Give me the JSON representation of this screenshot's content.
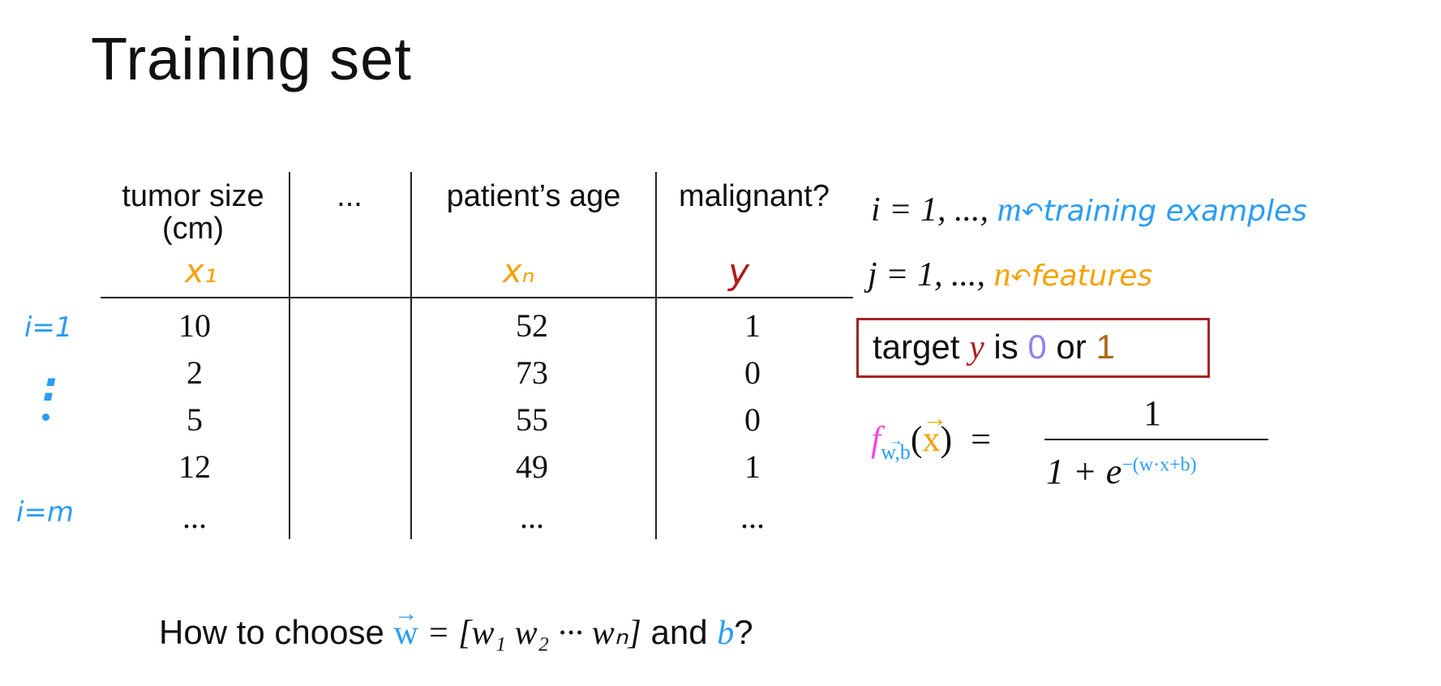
{
  "title": "Training set",
  "table": {
    "headers": [
      {
        "label": "tumor size",
        "sub": "(cm)",
        "var": "x₁"
      },
      {
        "label": "...",
        "sub": "",
        "var": ""
      },
      {
        "label": "patient’s age",
        "sub": "",
        "var": "xₙ"
      },
      {
        "label": "malignant?",
        "sub": "",
        "var": "y"
      }
    ],
    "rows": [
      [
        "10",
        "",
        "52",
        "1"
      ],
      [
        "2",
        "",
        "73",
        "0"
      ],
      [
        "5",
        "",
        "55",
        "0"
      ],
      [
        "12",
        "",
        "49",
        "1"
      ],
      [
        "...",
        "",
        "...",
        "..."
      ]
    ],
    "row_labels": {
      "first": "i=1",
      "dots": ":",
      "last": "i=m"
    }
  },
  "notes": {
    "i_range": "i = 1, ..., ",
    "i_end": "m",
    "i_note": "training examples",
    "j_range": "j = 1, ..., ",
    "j_end": "n",
    "j_note": "features"
  },
  "target": {
    "prefix": "target ",
    "y": "y",
    "is": " is ",
    "zero": "0",
    "or": " or ",
    "one": "1"
  },
  "formula": {
    "f": "f",
    "sub": "w,b",
    "arg": "x",
    "equals": "=",
    "numerator": "1",
    "denominator_prefix": "1 + e",
    "exponent": "−(w·x+b)"
  },
  "question": {
    "prefix": "How to choose ",
    "w": "w",
    "vector": " = [w₁   w₂   ···   wₙ]",
    "and": " and ",
    "b": "b",
    "end": "?"
  },
  "colors": {
    "orange": "#f5a100",
    "blue": "#2a9df4",
    "red": "#b01c1c",
    "purple": "#8f84f0",
    "brown": "#a86a12",
    "magenta": "#e84de6",
    "box_border": "#a32424"
  }
}
